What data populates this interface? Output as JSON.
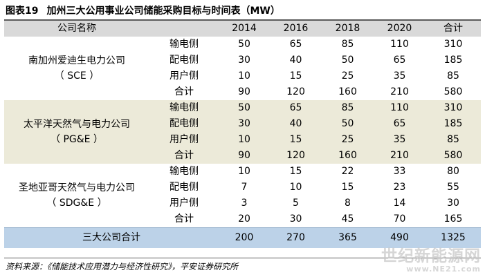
{
  "figure": {
    "number": "图表19",
    "title": "加州三大公用事业公司储能采购目标与时间表（MW）"
  },
  "table": {
    "header": {
      "company_col": "公司名称",
      "years": [
        "2014",
        "2016",
        "2018",
        "2020"
      ],
      "total_col": "合计"
    },
    "groups": [
      {
        "company_line1": "南加州爱迪生电力公司",
        "company_line2": "（ SCE ）",
        "rows": [
          {
            "category": "输电侧",
            "values": [
              "50",
              "65",
              "85",
              "110",
              "310"
            ]
          },
          {
            "category": "配电侧",
            "values": [
              "30",
              "40",
              "50",
              "65",
              "185"
            ]
          },
          {
            "category": "用户侧",
            "values": [
              "10",
              "15",
              "25",
              "35",
              "85"
            ]
          },
          {
            "category": "合计",
            "values": [
              "90",
              "120",
              "160",
              "210",
              "580"
            ]
          }
        ]
      },
      {
        "company_line1": "太平洋天然气与电力公司",
        "company_line2": "（ PG&E ）",
        "rows": [
          {
            "category": "输电侧",
            "values": [
              "50",
              "65",
              "85",
              "110",
              "310"
            ]
          },
          {
            "category": "配电侧",
            "values": [
              "30",
              "40",
              "50",
              "65",
              "185"
            ]
          },
          {
            "category": "用户侧",
            "values": [
              "10",
              "15",
              "25",
              "35",
              "85"
            ]
          },
          {
            "category": "合计",
            "values": [
              "90",
              "120",
              "160",
              "210",
              "580"
            ]
          }
        ]
      },
      {
        "company_line1": "圣地亚哥天然气与电力公司",
        "company_line2": "（ SDG&E ）",
        "rows": [
          {
            "category": "输电侧",
            "values": [
              "10",
              "15",
              "22",
              "33",
              "80"
            ]
          },
          {
            "category": "配电侧",
            "values": [
              "7",
              "10",
              "15",
              "23",
              "55"
            ]
          },
          {
            "category": "用户侧",
            "values": [
              "3",
              "5",
              "8",
              "14",
              "30"
            ]
          },
          {
            "category": "合计",
            "values": [
              "20",
              "30",
              "45",
              "70",
              "165"
            ]
          }
        ]
      }
    ],
    "grand_total": {
      "label": "三大公司合计",
      "values": [
        "200",
        "270",
        "365",
        "490",
        "1325"
      ]
    }
  },
  "source": "资料来源：《储能技术应用潜力与经济性研究》，平安证券研究所",
  "watermark": {
    "line1": "世纪新能源网",
    "line2": "www.NE21.com"
  },
  "colors": {
    "header_bg": "#d9d9d9",
    "band_bg": "#ecead9",
    "total_bg": "#bcd2e8"
  }
}
